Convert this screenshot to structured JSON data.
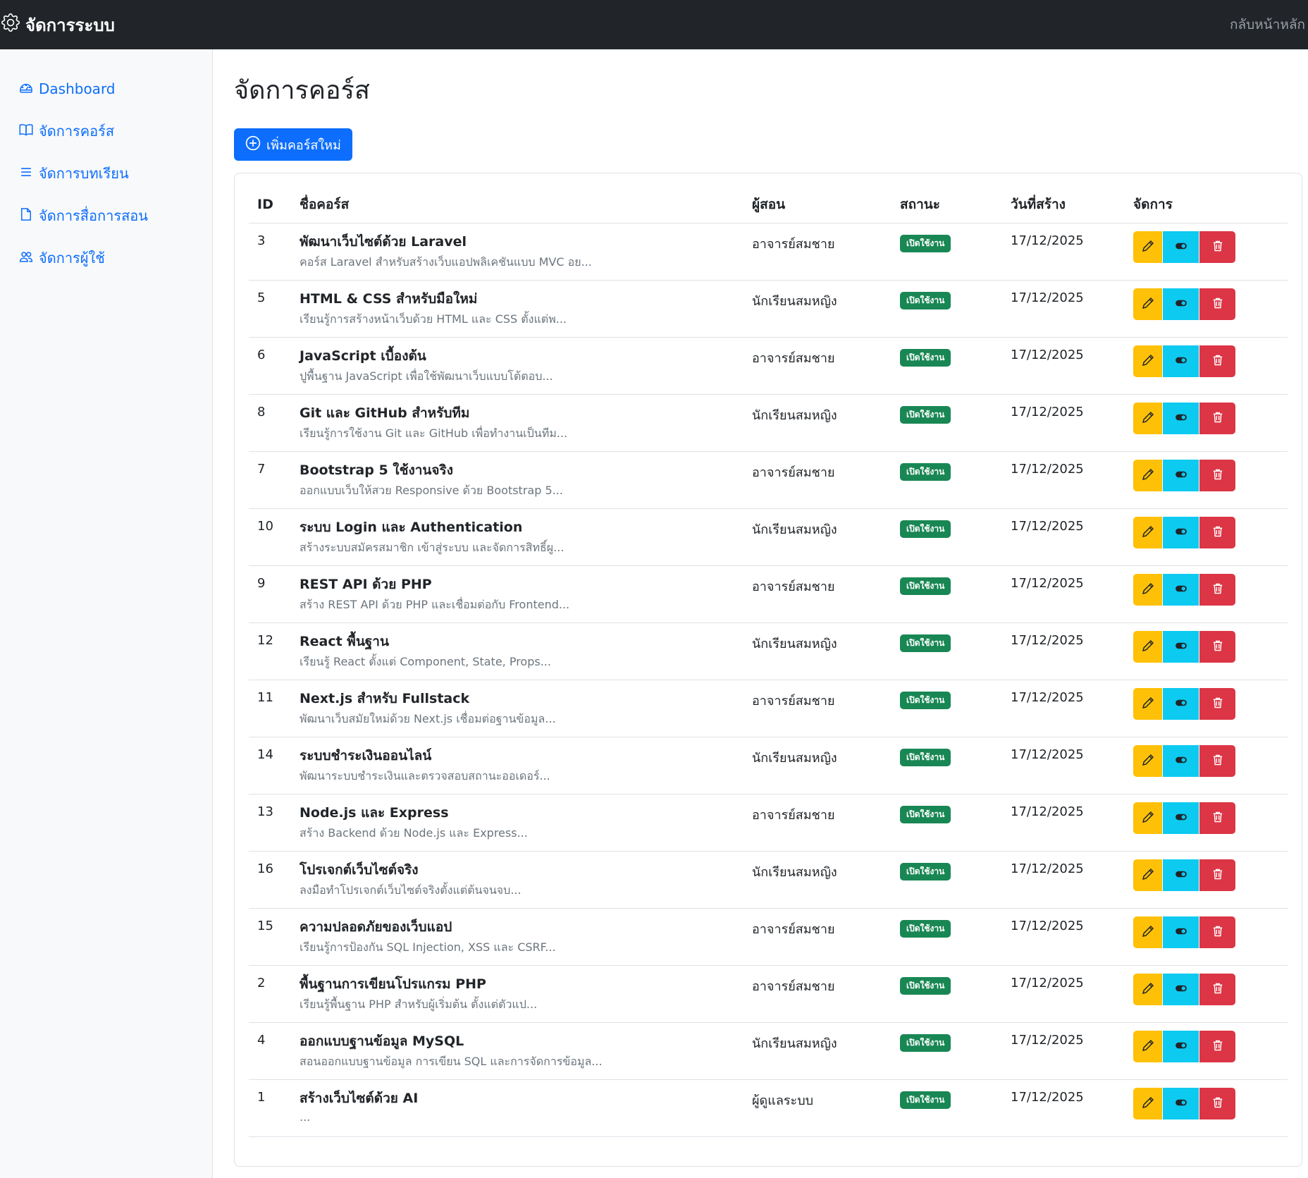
{
  "navbar": {
    "brand": "จัดการระบบ",
    "back_link": "กลับหน้าหลัก"
  },
  "sidebar": {
    "items": [
      {
        "label": "Dashboard",
        "icon": "speedometer-icon"
      },
      {
        "label": "จัดการคอร์ส",
        "icon": "book-icon"
      },
      {
        "label": "จัดการบทเรียน",
        "icon": "list-icon"
      },
      {
        "label": "จัดการสื่อการสอน",
        "icon": "file-icon"
      },
      {
        "label": "จัดการผู้ใช้",
        "icon": "people-icon"
      }
    ]
  },
  "main": {
    "title": "จัดการคอร์ส",
    "add_button": "เพิ่มคอร์สใหม่",
    "table": {
      "headers": [
        "ID",
        "ชื่อคอร์ส",
        "ผู้สอน",
        "สถานะ",
        "วันที่สร้าง",
        "จัดการ"
      ],
      "rows": [
        {
          "id": "3",
          "title": "พัฒนาเว็บไซต์ด้วย Laravel",
          "desc": "คอร์ส Laravel สำหรับสร้างเว็บแอปพลิเคชันแบบ MVC อย...",
          "teacher": "อาจารย์สมชาย",
          "status": "เปิดใช้งาน",
          "date": "17/12/2025"
        },
        {
          "id": "5",
          "title": "HTML & CSS สำหรับมือใหม่",
          "desc": "เรียนรู้การสร้างหน้าเว็บด้วย HTML และ CSS ตั้งแต่พ...",
          "teacher": "นักเรียนสมหญิง",
          "status": "เปิดใช้งาน",
          "date": "17/12/2025"
        },
        {
          "id": "6",
          "title": "JavaScript เบื้องต้น",
          "desc": "ปูพื้นฐาน JavaScript เพื่อใช้พัฒนาเว็บแบบโต้ตอบ...",
          "teacher": "อาจารย์สมชาย",
          "status": "เปิดใช้งาน",
          "date": "17/12/2025"
        },
        {
          "id": "8",
          "title": "Git และ GitHub สำหรับทีม",
          "desc": "เรียนรู้การใช้งาน Git และ GitHub เพื่อทำงานเป็นทีม...",
          "teacher": "นักเรียนสมหญิง",
          "status": "เปิดใช้งาน",
          "date": "17/12/2025"
        },
        {
          "id": "7",
          "title": "Bootstrap 5 ใช้งานจริง",
          "desc": "ออกแบบเว็บให้สวย Responsive ด้วย Bootstrap 5...",
          "teacher": "อาจารย์สมชาย",
          "status": "เปิดใช้งาน",
          "date": "17/12/2025"
        },
        {
          "id": "10",
          "title": "ระบบ Login และ Authentication",
          "desc": "สร้างระบบสมัครสมาชิก เข้าสู่ระบบ และจัดการสิทธิ์ผู...",
          "teacher": "นักเรียนสมหญิง",
          "status": "เปิดใช้งาน",
          "date": "17/12/2025"
        },
        {
          "id": "9",
          "title": "REST API ด้วย PHP",
          "desc": "สร้าง REST API ด้วย PHP และเชื่อมต่อกับ Frontend...",
          "teacher": "อาจารย์สมชาย",
          "status": "เปิดใช้งาน",
          "date": "17/12/2025"
        },
        {
          "id": "12",
          "title": "React พื้นฐาน",
          "desc": "เรียนรู้ React ตั้งแต่ Component, State, Props...",
          "teacher": "นักเรียนสมหญิง",
          "status": "เปิดใช้งาน",
          "date": "17/12/2025"
        },
        {
          "id": "11",
          "title": "Next.js สำหรับ Fullstack",
          "desc": "พัฒนาเว็บสมัยใหม่ด้วย Next.js เชื่อมต่อฐานข้อมูล...",
          "teacher": "อาจารย์สมชาย",
          "status": "เปิดใช้งาน",
          "date": "17/12/2025"
        },
        {
          "id": "14",
          "title": "ระบบชำระเงินออนไลน์",
          "desc": "พัฒนาระบบชำระเงินและตรวจสอบสถานะออเดอร์...",
          "teacher": "นักเรียนสมหญิง",
          "status": "เปิดใช้งาน",
          "date": "17/12/2025"
        },
        {
          "id": "13",
          "title": "Node.js และ Express",
          "desc": "สร้าง Backend ด้วย Node.js และ Express...",
          "teacher": "อาจารย์สมชาย",
          "status": "เปิดใช้งาน",
          "date": "17/12/2025"
        },
        {
          "id": "16",
          "title": "โปรเจกต์เว็บไซต์จริง",
          "desc": "ลงมือทำโปรเจกต์เว็บไซต์จริงตั้งแต่ต้นจนจบ...",
          "teacher": "นักเรียนสมหญิง",
          "status": "เปิดใช้งาน",
          "date": "17/12/2025"
        },
        {
          "id": "15",
          "title": "ความปลอดภัยของเว็บแอป",
          "desc": "เรียนรู้การป้องกัน SQL Injection, XSS และ CSRF...",
          "teacher": "อาจารย์สมชาย",
          "status": "เปิดใช้งาน",
          "date": "17/12/2025"
        },
        {
          "id": "2",
          "title": "พื้นฐานการเขียนโปรแกรม PHP",
          "desc": "เรียนรู้พื้นฐาน PHP สำหรับผู้เริ่มต้น ตั้งแต่ตัวแป...",
          "teacher": "อาจารย์สมชาย",
          "status": "เปิดใช้งาน",
          "date": "17/12/2025"
        },
        {
          "id": "4",
          "title": "ออกแบบฐานข้อมูล MySQL",
          "desc": "สอนออกแบบฐานข้อมูล การเขียน SQL และการจัดการข้อมูล...",
          "teacher": "นักเรียนสมหญิง",
          "status": "เปิดใช้งาน",
          "date": "17/12/2025"
        },
        {
          "id": "1",
          "title": "สร้างเว็บไซต์ด้วย AI",
          "desc": "...",
          "teacher": "ผู้ดูแลระบบ",
          "status": "เปิดใช้งาน",
          "date": "17/12/2025"
        }
      ]
    }
  },
  "colors": {
    "navbar_bg": "#212529",
    "primary": "#0d6efd",
    "success": "#198754",
    "warning": "#ffc107",
    "info": "#0dcaf0",
    "danger": "#dc3545"
  },
  "row_action_icons": [
    "pencil-icon",
    "toggle-icon",
    "trash-icon"
  ]
}
